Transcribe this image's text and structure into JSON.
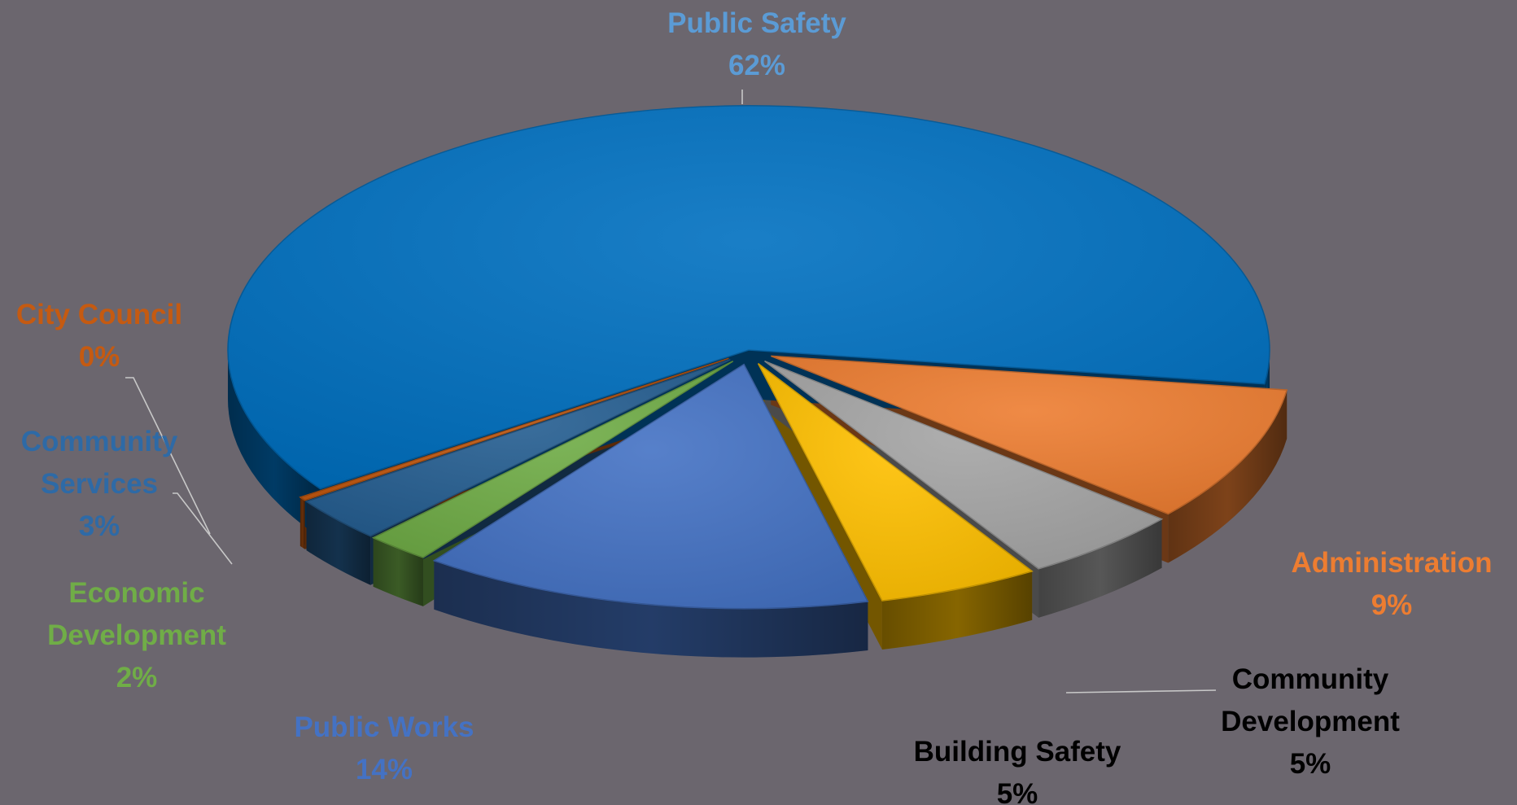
{
  "chart_data": {
    "type": "pie",
    "title": "",
    "style": "3d-exploded",
    "slices": [
      {
        "label": "Public Safety",
        "value": 62,
        "pct_label": "62%",
        "color": "#0070c0",
        "label_color": "#5b9bd5"
      },
      {
        "label": "Administration",
        "value": 9,
        "pct_label": "9%",
        "color": "#ed7d31",
        "label_color": "#ed7d31"
      },
      {
        "label": "Community Development",
        "label_lines": [
          "Community",
          "Development"
        ],
        "value": 5,
        "pct_label": "5%",
        "color": "#a5a5a5",
        "label_color": "#000000"
      },
      {
        "label": "Building Safety",
        "value": 5,
        "pct_label": "5%",
        "color": "#ffc000",
        "label_color": "#000000"
      },
      {
        "label": "Public Works",
        "value": 14,
        "pct_label": "14%",
        "color": "#4472c4",
        "label_color": "#4472c4"
      },
      {
        "label": "Economic Development",
        "label_lines": [
          "Economic",
          "Development"
        ],
        "value": 2,
        "pct_label": "2%",
        "color": "#70ad47",
        "label_color": "#70ad47"
      },
      {
        "label": "Community Services",
        "label_lines": [
          "Community",
          "Services"
        ],
        "value": 3,
        "pct_label": "3%",
        "color": "#255e91",
        "label_color": "#2e6aa6"
      },
      {
        "label": "City Council",
        "value": 0.25,
        "pct_label": "0%",
        "color": "#c55a11",
        "label_color": "#c55a11"
      }
    ],
    "legend": "none",
    "background": "#6b666e"
  }
}
